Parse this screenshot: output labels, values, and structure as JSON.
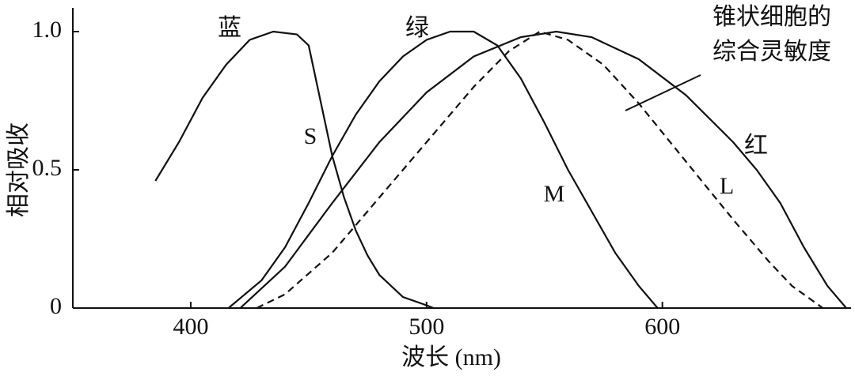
{
  "chart_data": {
    "type": "line",
    "xlabel": "波长 (nm)",
    "ylabel": "相对吸收",
    "xlim": [
      350,
      680
    ],
    "ylim": [
      0,
      1.08
    ],
    "xticks": [
      400,
      500,
      600
    ],
    "yticks": [
      0,
      0.5,
      {
        "value": 1,
        "label": "1.0"
      }
    ],
    "grid": false,
    "series": [
      {
        "name": "S",
        "color": "#111111",
        "dash": false,
        "x": [
          385,
          395,
          405,
          415,
          425,
          435,
          445,
          450,
          455,
          460,
          465,
          470,
          475,
          480,
          490,
          500,
          503
        ],
        "values": [
          0.46,
          0.6,
          0.76,
          0.88,
          0.97,
          1.0,
          0.99,
          0.95,
          0.75,
          0.55,
          0.4,
          0.28,
          0.19,
          0.12,
          0.04,
          0.01,
          0
        ]
      },
      {
        "name": "M",
        "color": "#111111",
        "dash": false,
        "x": [
          416,
          430,
          440,
          450,
          460,
          470,
          480,
          490,
          500,
          510,
          520,
          530,
          540,
          550,
          560,
          570,
          580,
          590,
          598
        ],
        "values": [
          0,
          0.1,
          0.22,
          0.38,
          0.55,
          0.7,
          0.82,
          0.91,
          0.97,
          1.0,
          1.0,
          0.95,
          0.83,
          0.67,
          0.5,
          0.35,
          0.2,
          0.08,
          0
        ]
      },
      {
        "name": "L",
        "color": "#111111",
        "dash": false,
        "x": [
          421,
          440,
          460,
          480,
          500,
          520,
          540,
          555,
          570,
          590,
          610,
          630,
          640,
          650,
          660,
          670,
          678
        ],
        "values": [
          0,
          0.15,
          0.38,
          0.6,
          0.78,
          0.91,
          0.98,
          1.0,
          0.98,
          0.9,
          0.77,
          0.6,
          0.5,
          0.38,
          0.22,
          0.08,
          0
        ]
      },
      {
        "color": "#111111",
        "dash": true,
        "x": [
          428,
          440,
          460,
          480,
          500,
          520,
          535,
          548,
          560,
          575,
          590,
          610,
          630,
          645,
          655,
          668
        ],
        "values": [
          0,
          0.05,
          0.2,
          0.4,
          0.6,
          0.8,
          0.93,
          1.0,
          0.97,
          0.88,
          0.74,
          0.53,
          0.32,
          0.17,
          0.08,
          0
        ]
      }
    ],
    "annotations": [
      "蓝",
      "绿",
      "红",
      "锥状细胞的",
      "综合灵敏度"
    ]
  }
}
